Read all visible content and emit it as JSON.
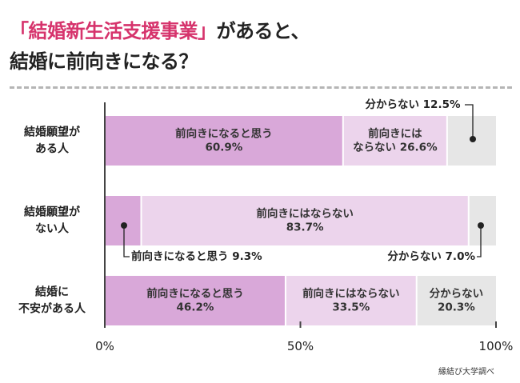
{
  "title": {
    "highlight": "「結婚新生活支援事業」",
    "rest": "があると、",
    "line2": "結婚に前向きになる？"
  },
  "source": "縁結び大学調べ",
  "colors": {
    "positive": "#d9a8d9",
    "negative": "#ecd4ec",
    "unknown": "#e6e6e6",
    "accent": "#d6336c",
    "axis": "#444444"
  },
  "chart_data": {
    "type": "bar",
    "orientation": "horizontal",
    "stacked": true,
    "title": "「結婚新生活支援事業」があると、結婚に前向きになる？",
    "xlabel": "",
    "ylabel": "",
    "xlim": [
      0,
      100
    ],
    "xticks": [
      "0%",
      "50%",
      "100%"
    ],
    "categories": [
      [
        "結婚願望が",
        "ある人"
      ],
      [
        "結婚願望が",
        "ない人"
      ],
      [
        "結婚に",
        "不安がある人"
      ]
    ],
    "series": [
      {
        "name": "前向きになると思う",
        "values": [
          60.9,
          9.3,
          46.2
        ]
      },
      {
        "name": "前向きにはならない",
        "values": [
          26.6,
          83.7,
          33.5
        ]
      },
      {
        "name": "分からない",
        "values": [
          12.5,
          7.0,
          20.3
        ]
      }
    ],
    "labels": [
      [
        "前向きになると思う",
        "60.9%"
      ],
      [
        "前向きには",
        "ならない 26.6%"
      ],
      "分からない 12.5%",
      "前向きになると思う 9.3%",
      [
        "前向きにはならない",
        "83.7%"
      ],
      "分からない 7.0%",
      [
        "前向きになると思う",
        "46.2%"
      ],
      [
        "前向きにはならない",
        "33.5%"
      ],
      [
        "分からない",
        "20.3%"
      ]
    ]
  }
}
